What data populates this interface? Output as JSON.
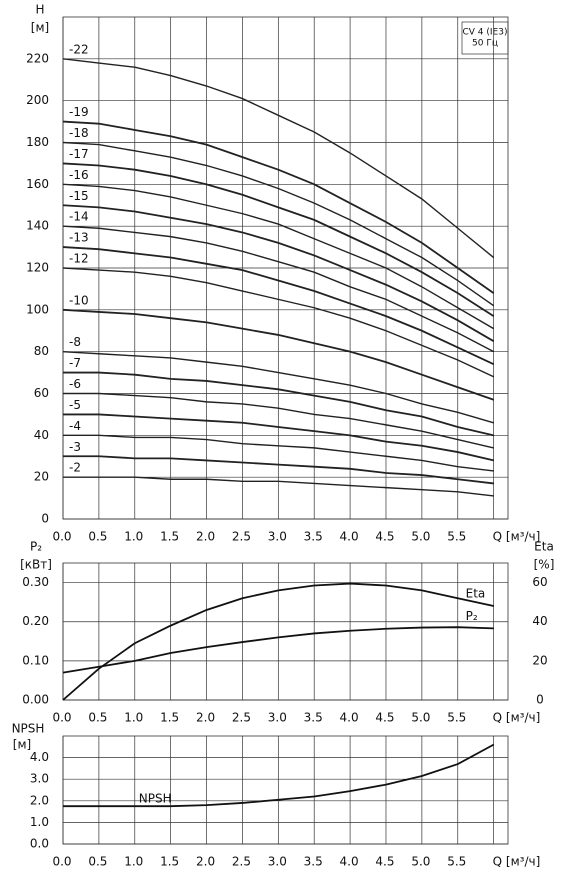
{
  "chart_data": [
    {
      "type": "line",
      "title": "CV 4 (IE3)",
      "subtitle": "50 Гц",
      "ylabel": "H",
      "yunit": "[м]",
      "x": [
        0,
        0.5,
        1,
        1.5,
        2,
        2.5,
        3,
        3.5,
        4,
        4.5,
        5,
        5.5,
        6
      ],
      "xlim": [
        0,
        6.2
      ],
      "xticks": [
        {
          "value": 0,
          "label": "0.0"
        },
        {
          "value": 0.5,
          "label": "0.5"
        },
        {
          "value": 1,
          "label": "1.0"
        },
        {
          "value": 1.5,
          "label": "1.5"
        },
        {
          "value": 2,
          "label": "2.0"
        },
        {
          "value": 2.5,
          "label": "2.5"
        },
        {
          "value": 3,
          "label": "3.0"
        },
        {
          "value": 3.5,
          "label": "3.5"
        },
        {
          "value": 4,
          "label": "4.0"
        },
        {
          "value": 4.5,
          "label": "4.5"
        },
        {
          "value": 5,
          "label": "5.0"
        },
        {
          "value": 5.5,
          "label": "5.5"
        },
        {
          "value": 6,
          "label": "Q [м³/ч]"
        }
      ],
      "ylim": [
        0,
        240
      ],
      "yticks": [
        0,
        20,
        40,
        60,
        80,
        100,
        120,
        140,
        160,
        180,
        200,
        220
      ],
      "grid": true,
      "series": [
        {
          "name": "-22",
          "color": "#222222",
          "values": [
            220,
            218,
            216,
            212,
            207,
            201,
            193,
            185,
            175,
            164,
            153,
            139,
            125
          ]
        },
        {
          "name": "-19",
          "color": "#222222",
          "values": [
            190,
            189,
            186,
            183,
            179,
            173,
            167,
            160,
            151,
            142,
            132,
            120,
            108
          ]
        },
        {
          "name": "-18",
          "color": "#222222",
          "values": [
            180,
            179,
            176,
            173,
            169,
            164,
            158,
            151,
            143,
            134,
            125,
            114,
            102
          ]
        },
        {
          "name": "-17",
          "color": "#222222",
          "values": [
            170,
            169,
            167,
            164,
            160,
            155,
            149,
            143,
            135,
            127,
            118,
            108,
            97
          ]
        },
        {
          "name": "-16",
          "color": "#222222",
          "values": [
            160,
            159,
            157,
            154,
            150,
            146,
            141,
            134,
            127,
            120,
            111,
            101,
            91
          ]
        },
        {
          "name": "-15",
          "color": "#222222",
          "values": [
            150,
            149,
            147,
            144,
            141,
            137,
            132,
            126,
            119,
            112,
            104,
            95,
            85
          ]
        },
        {
          "name": "-14",
          "color": "#222222",
          "values": [
            140,
            139,
            137,
            135,
            132,
            128,
            123,
            118,
            111,
            105,
            97,
            89,
            80
          ]
        },
        {
          "name": "-13",
          "color": "#222222",
          "values": [
            130,
            129,
            127,
            125,
            122,
            119,
            114,
            109,
            103,
            97,
            90,
            82,
            74
          ]
        },
        {
          "name": "-12",
          "color": "#222222",
          "values": [
            120,
            119,
            118,
            116,
            113,
            109,
            105,
            101,
            96,
            90,
            83,
            76,
            68
          ]
        },
        {
          "name": "-10",
          "color": "#222222",
          "values": [
            100,
            99,
            98,
            96,
            94,
            91,
            88,
            84,
            80,
            75,
            69,
            63,
            57
          ]
        },
        {
          "name": "-8",
          "color": "#222222",
          "values": [
            80,
            79,
            78,
            77,
            75,
            73,
            70,
            67,
            64,
            60,
            55,
            51,
            46
          ]
        },
        {
          "name": "-7",
          "color": "#222222",
          "values": [
            70,
            70,
            69,
            67,
            66,
            64,
            62,
            59,
            56,
            52,
            49,
            44,
            40
          ]
        },
        {
          "name": "-6",
          "color": "#222222",
          "values": [
            60,
            60,
            59,
            58,
            56,
            55,
            53,
            50,
            48,
            45,
            42,
            38,
            34
          ]
        },
        {
          "name": "-5",
          "color": "#222222",
          "values": [
            50,
            50,
            49,
            48,
            47,
            46,
            44,
            42,
            40,
            37,
            35,
            32,
            28
          ]
        },
        {
          "name": "-4",
          "color": "#222222",
          "values": [
            40,
            40,
            39,
            39,
            38,
            36,
            35,
            34,
            32,
            30,
            28,
            25,
            23
          ]
        },
        {
          "name": "-3",
          "color": "#222222",
          "values": [
            30,
            30,
            29,
            29,
            28,
            27,
            26,
            25,
            24,
            22,
            21,
            19,
            17
          ]
        },
        {
          "name": "-2",
          "color": "#222222",
          "values": [
            20,
            20,
            20,
            19,
            19,
            18,
            18,
            17,
            16,
            15,
            14,
            13,
            11
          ]
        }
      ]
    },
    {
      "type": "line",
      "ylabel": "P₂",
      "yunit": "[кВт]",
      "y2label": "Eta",
      "y2unit": "[%]",
      "x": [
        0,
        0.5,
        1,
        1.5,
        2,
        2.5,
        3,
        3.5,
        4,
        4.5,
        5,
        5.5,
        6
      ],
      "xlim": [
        0,
        6.2
      ],
      "xticks": [
        {
          "value": 0,
          "label": "0.0"
        },
        {
          "value": 0.5,
          "label": "0.5"
        },
        {
          "value": 1,
          "label": "1.0"
        },
        {
          "value": 1.5,
          "label": "1.5"
        },
        {
          "value": 2,
          "label": "2.0"
        },
        {
          "value": 2.5,
          "label": "2.5"
        },
        {
          "value": 3,
          "label": "3.0"
        },
        {
          "value": 3.5,
          "label": "3.5"
        },
        {
          "value": 4,
          "label": "4.0"
        },
        {
          "value": 4.5,
          "label": "4.5"
        },
        {
          "value": 5,
          "label": "5.0"
        },
        {
          "value": 5.5,
          "label": "5.5"
        },
        {
          "value": 6,
          "label": "Q [м³/ч]"
        }
      ],
      "ylim": [
        0,
        0.35
      ],
      "yticks": [
        {
          "value": 0,
          "label": "0.00"
        },
        {
          "value": 0.1,
          "label": "0.10"
        },
        {
          "value": 0.2,
          "label": "0.20"
        },
        {
          "value": 0.3,
          "label": "0.30"
        }
      ],
      "y2lim": [
        0,
        70
      ],
      "y2ticks": [
        0,
        20,
        40,
        60
      ],
      "grid": true,
      "series": [
        {
          "name": "Eta",
          "color": "#111111",
          "axis": "y2",
          "values": [
            0,
            16,
            29,
            38,
            46,
            52,
            56,
            58.5,
            59.5,
            58.5,
            56,
            52,
            48
          ]
        },
        {
          "name": "P₂",
          "color": "#111111",
          "values": [
            0.07,
            0.085,
            0.1,
            0.12,
            0.135,
            0.148,
            0.16,
            0.17,
            0.177,
            0.182,
            0.185,
            0.186,
            0.183
          ]
        }
      ]
    },
    {
      "type": "line",
      "ylabel": "NPSH",
      "yunit": "[м]",
      "x": [
        0,
        0.5,
        1,
        1.5,
        2,
        2.5,
        3,
        3.5,
        4,
        4.5,
        5,
        5.5,
        6
      ],
      "xlim": [
        0,
        6.2
      ],
      "xticks": [
        {
          "value": 0,
          "label": "0.0"
        },
        {
          "value": 0.5,
          "label": "0.5"
        },
        {
          "value": 1,
          "label": "1.0"
        },
        {
          "value": 1.5,
          "label": "1.5"
        },
        {
          "value": 2,
          "label": "2.0"
        },
        {
          "value": 2.5,
          "label": "2.5"
        },
        {
          "value": 3,
          "label": "3.0"
        },
        {
          "value": 3.5,
          "label": "3.5"
        },
        {
          "value": 4,
          "label": "4.0"
        },
        {
          "value": 4.5,
          "label": "4.5"
        },
        {
          "value": 5,
          "label": "5.0"
        },
        {
          "value": 5.5,
          "label": "5.5"
        },
        {
          "value": 6,
          "label": "Q [м³/ч]"
        }
      ],
      "ylim": [
        0,
        5
      ],
      "yticks": [
        {
          "value": 0,
          "label": "0.0"
        },
        {
          "value": 1,
          "label": "1.0"
        },
        {
          "value": 2,
          "label": "2.0"
        },
        {
          "value": 3,
          "label": "3.0"
        },
        {
          "value": 4,
          "label": "4.0"
        }
      ],
      "grid": true,
      "series": [
        {
          "name": "NPSH",
          "color": "#111111",
          "values": [
            1.75,
            1.75,
            1.75,
            1.75,
            1.8,
            1.9,
            2.05,
            2.2,
            2.45,
            2.75,
            3.15,
            3.7,
            4.6
          ]
        }
      ]
    }
  ]
}
